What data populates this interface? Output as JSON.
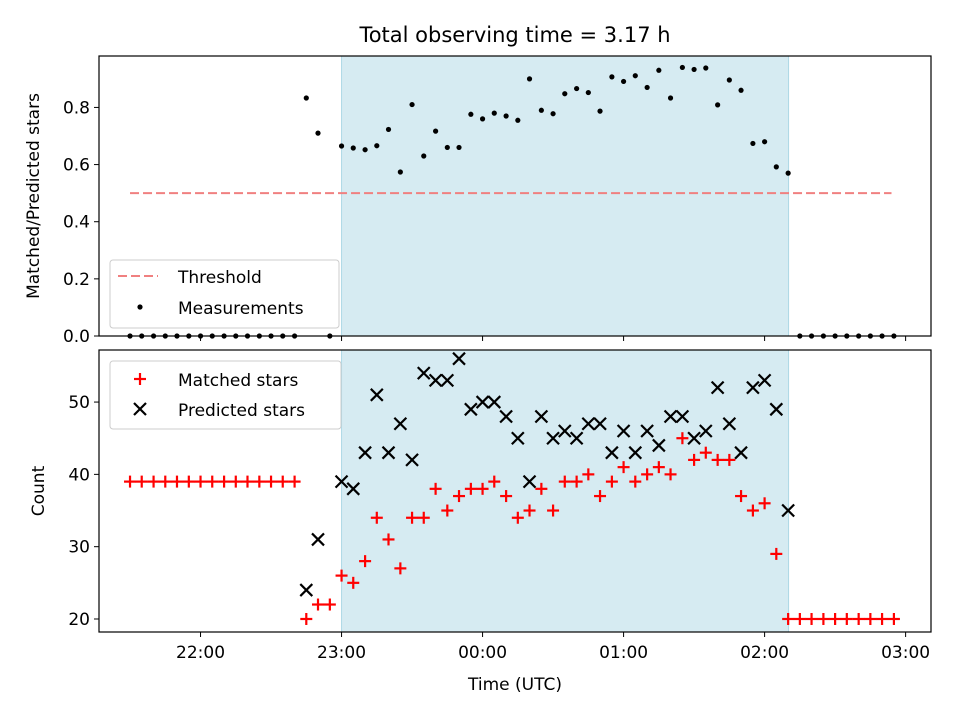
{
  "chart_data": [
    {
      "type": "scatter",
      "title": "Total observing time = 3.17 h",
      "ylabel": "Matched/Predicted stars",
      "xlabel": "",
      "xlim": [
        21.28,
        27.18
      ],
      "ylim": [
        0,
        0.98
      ],
      "yticks": [
        "0.0",
        "0.2",
        "0.4",
        "0.6",
        "0.8"
      ],
      "grid": false,
      "legend": {
        "position": "lower-left",
        "entries": [
          "Threshold",
          "Measurements"
        ]
      },
      "shaded_span": {
        "start": 23.0,
        "end": 26.17,
        "color": "#add8e6"
      },
      "threshold": {
        "name": "Threshold",
        "value": 0.5,
        "x": [
          21.5,
          26.9
        ],
        "color": "#f08080"
      },
      "series": [
        {
          "name": "Measurements",
          "color": "#000000",
          "x": [
            21.5,
            21.583,
            21.667,
            21.75,
            21.833,
            21.917,
            22.0,
            22.083,
            22.167,
            22.25,
            22.333,
            22.417,
            22.5,
            22.583,
            22.667,
            22.75,
            22.833,
            22.917,
            23.0,
            23.083,
            23.167,
            23.25,
            23.333,
            23.417,
            23.5,
            23.583,
            23.667,
            23.75,
            23.833,
            23.917,
            24.0,
            24.083,
            24.167,
            24.25,
            24.333,
            24.417,
            24.5,
            24.583,
            24.667,
            24.75,
            24.833,
            24.917,
            25.0,
            25.083,
            25.167,
            25.25,
            25.333,
            25.417,
            25.5,
            25.583,
            25.667,
            25.75,
            25.833,
            25.917,
            26.0,
            26.083,
            26.167,
            26.25,
            26.333,
            26.417,
            26.5,
            26.583,
            26.667,
            26.75,
            26.833,
            26.917
          ],
          "y": [
            0.0,
            0.0,
            0.0,
            0.0,
            0.0,
            0.0,
            0.0,
            0.0,
            0.0,
            0.0,
            0.0,
            0.0,
            0.0,
            0.0,
            0.0,
            0.833,
            0.71,
            0.0,
            0.665,
            0.658,
            0.652,
            0.666,
            0.723,
            0.574,
            0.81,
            0.63,
            0.717,
            0.66,
            0.66,
            0.776,
            0.76,
            0.78,
            0.77,
            0.755,
            0.9,
            0.79,
            0.778,
            0.848,
            0.866,
            0.852,
            0.787,
            0.907,
            0.891,
            0.911,
            0.87,
            0.93,
            0.833,
            0.94,
            0.933,
            0.938,
            0.809,
            0.896,
            0.86,
            0.674,
            0.68,
            0.592,
            0.57,
            0.0,
            0.0,
            0.0,
            0.0,
            0.0,
            0.0,
            0.0,
            0.0,
            0.0
          ]
        }
      ]
    },
    {
      "type": "scatter",
      "title": "",
      "xlabel": "Time (UTC)",
      "ylabel": "Count",
      "xlim": [
        21.28,
        27.18
      ],
      "ylim": [
        18.2,
        57.2
      ],
      "yticks": [
        "20",
        "30",
        "40",
        "50"
      ],
      "xticks": [
        "22:00",
        "23:00",
        "00:00",
        "01:00",
        "02:00",
        "03:00"
      ],
      "grid": false,
      "legend": {
        "position": "top-left",
        "entries": [
          "Matched stars",
          "Predicted stars"
        ]
      },
      "shaded_span": {
        "start": 23.0,
        "end": 26.17,
        "color": "#add8e6"
      },
      "series": [
        {
          "name": "Matched stars",
          "marker": "plus",
          "color": "#ff0000",
          "x": [
            21.5,
            21.583,
            21.667,
            21.75,
            21.833,
            21.917,
            22.0,
            22.083,
            22.167,
            22.25,
            22.333,
            22.417,
            22.5,
            22.583,
            22.667,
            22.75,
            22.833,
            22.917,
            23.0,
            23.083,
            23.167,
            23.25,
            23.333,
            23.417,
            23.5,
            23.583,
            23.667,
            23.75,
            23.833,
            23.917,
            24.0,
            24.083,
            24.167,
            24.25,
            24.333,
            24.417,
            24.5,
            24.583,
            24.667,
            24.75,
            24.833,
            24.917,
            25.0,
            25.083,
            25.167,
            25.25,
            25.333,
            25.417,
            25.5,
            25.583,
            25.667,
            25.75,
            25.833,
            25.917,
            26.0,
            26.083,
            26.167,
            26.25,
            26.333,
            26.417,
            26.5,
            26.583,
            26.667,
            26.75,
            26.833,
            26.917
          ],
          "y": [
            39,
            39,
            39,
            39,
            39,
            39,
            39,
            39,
            39,
            39,
            39,
            39,
            39,
            39,
            39,
            20,
            22,
            22,
            26,
            25,
            28,
            34,
            31,
            27,
            34,
            34,
            38,
            35,
            37,
            38,
            38,
            39,
            37,
            34,
            35,
            38,
            35,
            39,
            39,
            40,
            37,
            39,
            41,
            39,
            40,
            41,
            40,
            45,
            42,
            43,
            42,
            42,
            37,
            35,
            36,
            29,
            20,
            20,
            20,
            20,
            20,
            20,
            20,
            20,
            20,
            20
          ]
        },
        {
          "name": "Predicted stars",
          "marker": "x",
          "color": "#000000",
          "x": [
            22.75,
            22.833,
            23.0,
            23.083,
            23.167,
            23.25,
            23.333,
            23.417,
            23.5,
            23.583,
            23.667,
            23.75,
            23.833,
            23.917,
            24.0,
            24.083,
            24.167,
            24.25,
            24.333,
            24.417,
            24.5,
            24.583,
            24.667,
            24.75,
            24.833,
            24.917,
            25.0,
            25.083,
            25.167,
            25.25,
            25.333,
            25.417,
            25.5,
            25.583,
            25.667,
            25.75,
            25.833,
            25.917,
            26.0,
            26.083,
            26.167
          ],
          "y": [
            24,
            31,
            39,
            38,
            43,
            51,
            43,
            47,
            42,
            54,
            53,
            53,
            56,
            49,
            50,
            50,
            48,
            45,
            39,
            48,
            45,
            46,
            45,
            47,
            47,
            43,
            46,
            43,
            46,
            44,
            48,
            48,
            45,
            46,
            52,
            47,
            43,
            52,
            53,
            49,
            35
          ]
        }
      ]
    }
  ]
}
